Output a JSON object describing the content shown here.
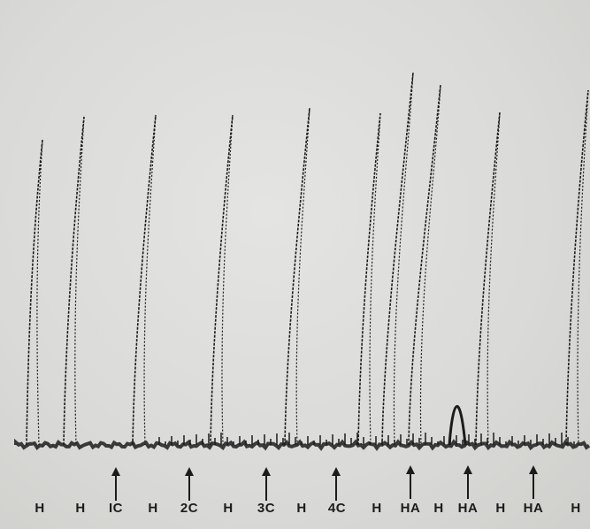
{
  "labels": [
    "H",
    "H",
    "IC",
    "H",
    "2C",
    "H",
    "3C",
    "H",
    "4C",
    "H",
    "HA",
    "H",
    "HA",
    "H",
    "HA",
    "H"
  ],
  "arrow_icon": "up-arrow-icon",
  "colors": {
    "background": "#d9d9d7",
    "ink": "#1c1c1c"
  }
}
